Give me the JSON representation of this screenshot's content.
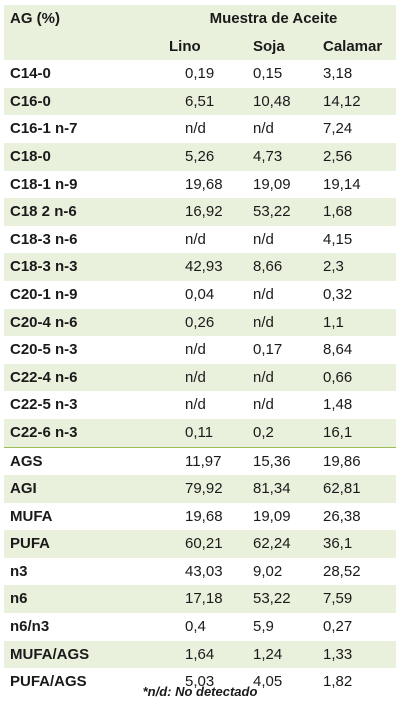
{
  "table": {
    "corner_header": "AG (%)",
    "group_header": "Muestra de Aceite",
    "columns": [
      "Lino",
      "Soja",
      "Calamar"
    ],
    "rows": [
      {
        "ag": "C14-0",
        "values": [
          "0,19",
          "0,15",
          "3,18"
        ]
      },
      {
        "ag": "C16-0",
        "values": [
          "6,51",
          "10,48",
          "14,12"
        ]
      },
      {
        "ag": "C16-1 n-7",
        "values": [
          "n/d",
          "n/d",
          "7,24"
        ]
      },
      {
        "ag": "C18-0",
        "values": [
          "5,26",
          "4,73",
          "2,56"
        ]
      },
      {
        "ag": "C18-1 n-9",
        "values": [
          "19,68",
          "19,09",
          "19,14"
        ]
      },
      {
        "ag": "C18 2 n-6",
        "values": [
          "16,92",
          "53,22",
          "1,68"
        ]
      },
      {
        "ag": "C18-3 n-6",
        "values": [
          "n/d",
          "n/d",
          "4,15"
        ]
      },
      {
        "ag": "C18-3 n-3",
        "values": [
          "42,93",
          "8,66",
          "2,3"
        ]
      },
      {
        "ag": "C20-1 n-9",
        "values": [
          "0,04",
          "n/d",
          "0,32"
        ]
      },
      {
        "ag": "C20-4 n-6",
        "values": [
          "0,26",
          "n/d",
          "1,1"
        ]
      },
      {
        "ag": "C20-5  n-3",
        "values": [
          "n/d",
          "0,17",
          "8,64"
        ]
      },
      {
        "ag": "C22-4 n-6",
        "values": [
          "n/d",
          "n/d",
          "0,66"
        ]
      },
      {
        "ag": "C22-5 n-3",
        "values": [
          "n/d",
          "n/d",
          "1,48"
        ]
      },
      {
        "ag": "C22-6 n-3",
        "values": [
          "0,11",
          "0,2",
          "16,1"
        ]
      },
      {
        "ag": "AGS",
        "values": [
          "11,97",
          "15,36",
          "19,86"
        ]
      },
      {
        "ag": "AGI",
        "values": [
          "79,92",
          "81,34",
          "62,81"
        ]
      },
      {
        "ag": "MUFA",
        "values": [
          "19,68",
          "19,09",
          "26,38"
        ]
      },
      {
        "ag": "PUFA",
        "values": [
          "60,21",
          "62,24",
          "36,1"
        ]
      },
      {
        "ag": "n3",
        "values": [
          "43,03",
          "9,02",
          "28,52"
        ]
      },
      {
        "ag": "n6",
        "values": [
          "17,18",
          "53,22",
          "7,59"
        ]
      },
      {
        "ag": "n6/n3",
        "values": [
          "0,4",
          "5,9",
          "0,27"
        ]
      },
      {
        "ag": "MUFA/AGS",
        "values": [
          "1,64",
          "1,24",
          "1,33"
        ]
      },
      {
        "ag": "PUFA/AGS",
        "values": [
          "5,03",
          "4,05",
          "1,82"
        ]
      }
    ]
  },
  "footnote": "*n/d: No detectado",
  "colors": {
    "row_shade": "#e9f1dd",
    "separator": "#9bbb59",
    "text": "#1a1a1a"
  }
}
